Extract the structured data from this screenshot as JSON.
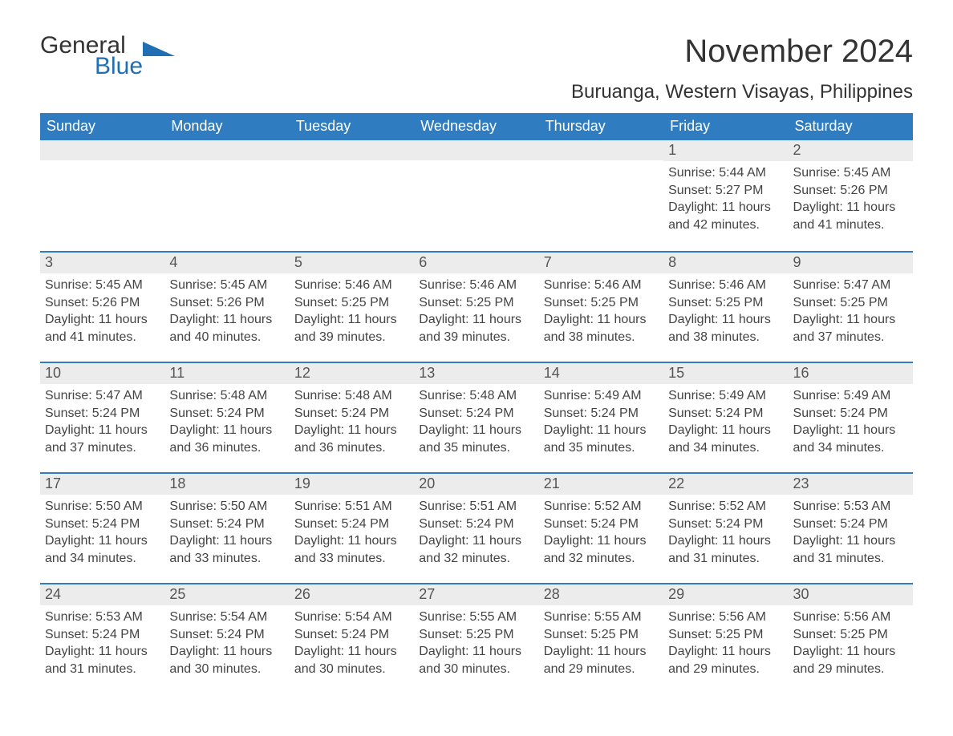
{
  "logo": {
    "general": "General",
    "blue": "Blue",
    "accent_color": "#1f6fb2"
  },
  "title": "November 2024",
  "location": "Buruanga, Western Visayas, Philippines",
  "colors": {
    "header_bg": "#2f7cc0",
    "header_text": "#ffffff",
    "row_divider": "#2f7cc0",
    "daynum_bg": "#ececec",
    "body_text": "#444444",
    "page_bg": "#ffffff"
  },
  "weekdays": [
    "Sunday",
    "Monday",
    "Tuesday",
    "Wednesday",
    "Thursday",
    "Friday",
    "Saturday"
  ],
  "weeks": [
    [
      {
        "blank": true
      },
      {
        "blank": true
      },
      {
        "blank": true
      },
      {
        "blank": true
      },
      {
        "blank": true
      },
      {
        "day": "1",
        "sunrise": "Sunrise: 5:44 AM",
        "sunset": "Sunset: 5:27 PM",
        "daylight1": "Daylight: 11 hours",
        "daylight2": "and 42 minutes."
      },
      {
        "day": "2",
        "sunrise": "Sunrise: 5:45 AM",
        "sunset": "Sunset: 5:26 PM",
        "daylight1": "Daylight: 11 hours",
        "daylight2": "and 41 minutes."
      }
    ],
    [
      {
        "day": "3",
        "sunrise": "Sunrise: 5:45 AM",
        "sunset": "Sunset: 5:26 PM",
        "daylight1": "Daylight: 11 hours",
        "daylight2": "and 41 minutes."
      },
      {
        "day": "4",
        "sunrise": "Sunrise: 5:45 AM",
        "sunset": "Sunset: 5:26 PM",
        "daylight1": "Daylight: 11 hours",
        "daylight2": "and 40 minutes."
      },
      {
        "day": "5",
        "sunrise": "Sunrise: 5:46 AM",
        "sunset": "Sunset: 5:25 PM",
        "daylight1": "Daylight: 11 hours",
        "daylight2": "and 39 minutes."
      },
      {
        "day": "6",
        "sunrise": "Sunrise: 5:46 AM",
        "sunset": "Sunset: 5:25 PM",
        "daylight1": "Daylight: 11 hours",
        "daylight2": "and 39 minutes."
      },
      {
        "day": "7",
        "sunrise": "Sunrise: 5:46 AM",
        "sunset": "Sunset: 5:25 PM",
        "daylight1": "Daylight: 11 hours",
        "daylight2": "and 38 minutes."
      },
      {
        "day": "8",
        "sunrise": "Sunrise: 5:46 AM",
        "sunset": "Sunset: 5:25 PM",
        "daylight1": "Daylight: 11 hours",
        "daylight2": "and 38 minutes."
      },
      {
        "day": "9",
        "sunrise": "Sunrise: 5:47 AM",
        "sunset": "Sunset: 5:25 PM",
        "daylight1": "Daylight: 11 hours",
        "daylight2": "and 37 minutes."
      }
    ],
    [
      {
        "day": "10",
        "sunrise": "Sunrise: 5:47 AM",
        "sunset": "Sunset: 5:24 PM",
        "daylight1": "Daylight: 11 hours",
        "daylight2": "and 37 minutes."
      },
      {
        "day": "11",
        "sunrise": "Sunrise: 5:48 AM",
        "sunset": "Sunset: 5:24 PM",
        "daylight1": "Daylight: 11 hours",
        "daylight2": "and 36 minutes."
      },
      {
        "day": "12",
        "sunrise": "Sunrise: 5:48 AM",
        "sunset": "Sunset: 5:24 PM",
        "daylight1": "Daylight: 11 hours",
        "daylight2": "and 36 minutes."
      },
      {
        "day": "13",
        "sunrise": "Sunrise: 5:48 AM",
        "sunset": "Sunset: 5:24 PM",
        "daylight1": "Daylight: 11 hours",
        "daylight2": "and 35 minutes."
      },
      {
        "day": "14",
        "sunrise": "Sunrise: 5:49 AM",
        "sunset": "Sunset: 5:24 PM",
        "daylight1": "Daylight: 11 hours",
        "daylight2": "and 35 minutes."
      },
      {
        "day": "15",
        "sunrise": "Sunrise: 5:49 AM",
        "sunset": "Sunset: 5:24 PM",
        "daylight1": "Daylight: 11 hours",
        "daylight2": "and 34 minutes."
      },
      {
        "day": "16",
        "sunrise": "Sunrise: 5:49 AM",
        "sunset": "Sunset: 5:24 PM",
        "daylight1": "Daylight: 11 hours",
        "daylight2": "and 34 minutes."
      }
    ],
    [
      {
        "day": "17",
        "sunrise": "Sunrise: 5:50 AM",
        "sunset": "Sunset: 5:24 PM",
        "daylight1": "Daylight: 11 hours",
        "daylight2": "and 34 minutes."
      },
      {
        "day": "18",
        "sunrise": "Sunrise: 5:50 AM",
        "sunset": "Sunset: 5:24 PM",
        "daylight1": "Daylight: 11 hours",
        "daylight2": "and 33 minutes."
      },
      {
        "day": "19",
        "sunrise": "Sunrise: 5:51 AM",
        "sunset": "Sunset: 5:24 PM",
        "daylight1": "Daylight: 11 hours",
        "daylight2": "and 33 minutes."
      },
      {
        "day": "20",
        "sunrise": "Sunrise: 5:51 AM",
        "sunset": "Sunset: 5:24 PM",
        "daylight1": "Daylight: 11 hours",
        "daylight2": "and 32 minutes."
      },
      {
        "day": "21",
        "sunrise": "Sunrise: 5:52 AM",
        "sunset": "Sunset: 5:24 PM",
        "daylight1": "Daylight: 11 hours",
        "daylight2": "and 32 minutes."
      },
      {
        "day": "22",
        "sunrise": "Sunrise: 5:52 AM",
        "sunset": "Sunset: 5:24 PM",
        "daylight1": "Daylight: 11 hours",
        "daylight2": "and 31 minutes."
      },
      {
        "day": "23",
        "sunrise": "Sunrise: 5:53 AM",
        "sunset": "Sunset: 5:24 PM",
        "daylight1": "Daylight: 11 hours",
        "daylight2": "and 31 minutes."
      }
    ],
    [
      {
        "day": "24",
        "sunrise": "Sunrise: 5:53 AM",
        "sunset": "Sunset: 5:24 PM",
        "daylight1": "Daylight: 11 hours",
        "daylight2": "and 31 minutes."
      },
      {
        "day": "25",
        "sunrise": "Sunrise: 5:54 AM",
        "sunset": "Sunset: 5:24 PM",
        "daylight1": "Daylight: 11 hours",
        "daylight2": "and 30 minutes."
      },
      {
        "day": "26",
        "sunrise": "Sunrise: 5:54 AM",
        "sunset": "Sunset: 5:24 PM",
        "daylight1": "Daylight: 11 hours",
        "daylight2": "and 30 minutes."
      },
      {
        "day": "27",
        "sunrise": "Sunrise: 5:55 AM",
        "sunset": "Sunset: 5:25 PM",
        "daylight1": "Daylight: 11 hours",
        "daylight2": "and 30 minutes."
      },
      {
        "day": "28",
        "sunrise": "Sunrise: 5:55 AM",
        "sunset": "Sunset: 5:25 PM",
        "daylight1": "Daylight: 11 hours",
        "daylight2": "and 29 minutes."
      },
      {
        "day": "29",
        "sunrise": "Sunrise: 5:56 AM",
        "sunset": "Sunset: 5:25 PM",
        "daylight1": "Daylight: 11 hours",
        "daylight2": "and 29 minutes."
      },
      {
        "day": "30",
        "sunrise": "Sunrise: 5:56 AM",
        "sunset": "Sunset: 5:25 PM",
        "daylight1": "Daylight: 11 hours",
        "daylight2": "and 29 minutes."
      }
    ]
  ]
}
